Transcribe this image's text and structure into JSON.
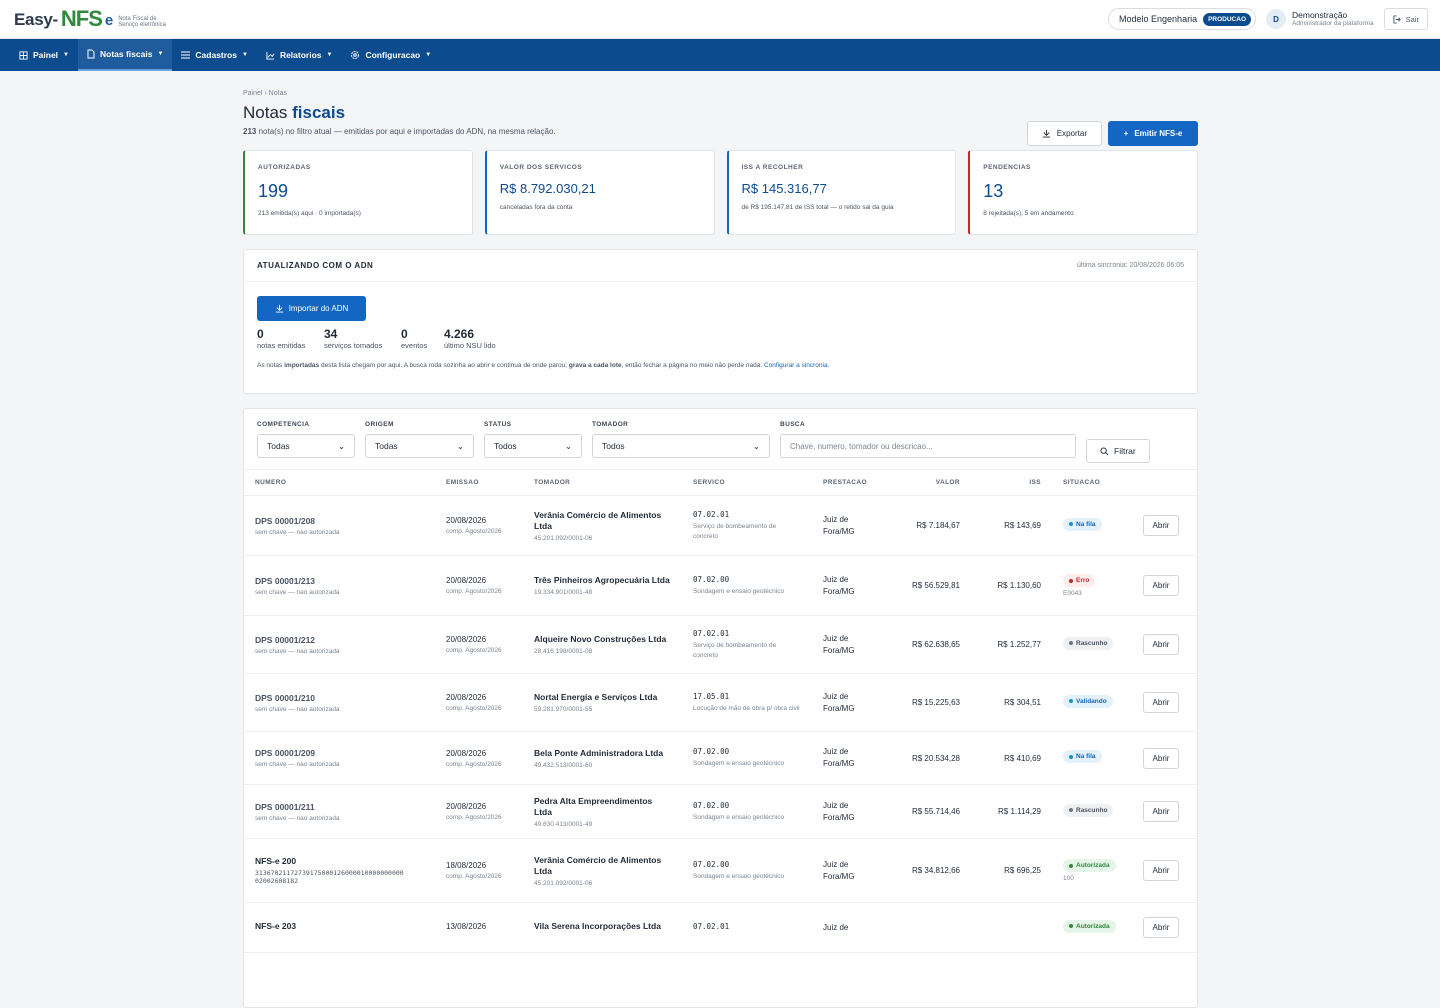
{
  "brand": {
    "name_a": "Easy-",
    "name_b": "NFS",
    "name_c": "e",
    "tagline_1": "Nota Fiscal de",
    "tagline_2": "Serviço eletrônica"
  },
  "header": {
    "company": "Modelo Engenharia",
    "env_badge": "PRODUCAO",
    "avatar": "D",
    "user_name": "Demonstração",
    "user_role": "Administrador da plataforma",
    "logout": "Sair"
  },
  "nav": [
    {
      "label": "Painel",
      "icon": "grid-icon",
      "active": false
    },
    {
      "label": "Notas fiscais",
      "icon": "document-icon",
      "active": true
    },
    {
      "label": "Cadastros",
      "icon": "list-icon",
      "active": false
    },
    {
      "label": "Relatorios",
      "icon": "chart-icon",
      "active": false
    },
    {
      "label": "Configuracao",
      "icon": "gear-icon",
      "active": false
    }
  ],
  "breadcrumb": "Painel › Notas",
  "page": {
    "title_a": "Notas ",
    "title_b": "fiscais",
    "count": "213",
    "subtitle_rest": " nota(s) no filtro atual — emitidas por aqui e importadas do ADN, na mesma relação.",
    "export": "Exportar",
    "emit": "Emitir NFS-e"
  },
  "cards": [
    {
      "label": "AUTORIZADAS",
      "value": "199",
      "desc": "213 emitida(s) aqui · 0 importada(s)",
      "color": "#2f8a3c"
    },
    {
      "label": "VALOR DOS SERVICOS",
      "value": "R$ 8.792.030,21",
      "desc": "canceladas fora da conta",
      "color": "#1366c2"
    },
    {
      "label": "ISS A RECOLHER",
      "value": "R$ 145.316,77",
      "desc": "de R$ 195.147,81 de ISS total — o retido sai da guia",
      "color": "#1366c2"
    },
    {
      "label": "PENDENCIAS",
      "value": "13",
      "desc": "8 rejeitada(s), 5 em andamento",
      "color": "#c62828"
    }
  ],
  "adn": {
    "title": "ATUALIZANDO COM O ADN",
    "sync": "última sincronia: 20/08/2026 06:05",
    "import": "Importar do ADN",
    "stats": [
      {
        "n": "0",
        "k": "notas emitidas"
      },
      {
        "n": "34",
        "k": "serviços tomados"
      },
      {
        "n": "0",
        "k": "eventos"
      },
      {
        "n": "4.266",
        "k": "último NSU lido"
      }
    ],
    "note_1": "As notas ",
    "note_b1": "importadas",
    "note_2": " desta lista chegam por aqui. A busca roda sozinha ao abrir e continua de onde parou; ",
    "note_b2": "grava a cada lote",
    "note_3": ", então fechar a página no meio não perde nada. ",
    "note_link": "Configurar a sincronia."
  },
  "filters": {
    "competencia_label": "COMPETENCIA",
    "competencia": "Todas",
    "origem_label": "ORIGEM",
    "origem": "Todas",
    "status_label": "STATUS",
    "status": "Todos",
    "tomador_label": "TOMADOR",
    "tomador": "Todos",
    "busca_label": "BUSCA",
    "busca_placeholder": "Chave, numero, tomador ou descricao...",
    "filtrar": "Filtrar"
  },
  "table": {
    "headers": [
      "NUMERO",
      "EMISSAO",
      "TOMADOR",
      "SERVICO",
      "PRESTACAO",
      "VALOR",
      "ISS",
      "SITUACAO"
    ],
    "open_label": "Abrir",
    "rows": [
      {
        "num": "DPS 00001/208",
        "sub": "sem chave — nao autorizada",
        "date": "20/08/2026",
        "comp": "comp. Agosto/2026",
        "tom": "Verânia Comércio de Alimentos Ltda",
        "cnpj": "45.201.092/0001-06",
        "code": "07.02.01",
        "svc": "Serviço de bombeamento de concreto",
        "city": "Juiz de Fora/MG",
        "valor": "R$ 7.184,67",
        "iss": "R$ 143,69",
        "status": "Na fila",
        "st": "fila",
        "stsub": ""
      },
      {
        "num": "DPS 00001/213",
        "sub": "sem chave — nao autorizada",
        "date": "20/08/2026",
        "comp": "comp. Agosto/2026",
        "tom": "Três Pinheiros Agropecuária Ltda",
        "cnpj": "19.334.901/0001-48",
        "code": "07.02.00",
        "svc": "Sondagem e ensaio geotécnico",
        "city": "Juiz de Fora/MG",
        "valor": "R$ 56.529,81",
        "iss": "R$ 1.130,60",
        "status": "Erro",
        "st": "erro",
        "stsub": "E0043"
      },
      {
        "num": "DPS 00001/212",
        "sub": "sem chave — nao autorizada",
        "date": "20/08/2026",
        "comp": "comp. Agosto/2026",
        "tom": "Alqueire Novo Construções Ltda",
        "cnpj": "28.416.198/0001-08",
        "code": "07.02.01",
        "svc": "Serviço de bombeamento de concreto",
        "city": "Juiz de Fora/MG",
        "valor": "R$ 62.638,65",
        "iss": "R$ 1.252,77",
        "status": "Rascunho",
        "st": "rasc",
        "stsub": ""
      },
      {
        "num": "DPS 00001/210",
        "sub": "sem chave — nao autorizada",
        "date": "20/08/2026",
        "comp": "comp. Agosto/2026",
        "tom": "Nortal Energia e Serviços Ltda",
        "cnpj": "59.281.970/0001-55",
        "code": "17.05.01",
        "svc": "Locução de mão de obra p/ obra civil",
        "city": "Juiz de Fora/MG",
        "valor": "R$ 15.225,63",
        "iss": "R$ 304,51",
        "status": "Validando",
        "st": "fila",
        "stsub": ""
      },
      {
        "num": "DPS 00001/209",
        "sub": "sem chave — nao autorizada",
        "date": "20/08/2026",
        "comp": "comp. Agosto/2026",
        "tom": "Bela Ponte Administradora Ltda",
        "cnpj": "49.432.513/0001-60",
        "code": "07.02.00",
        "svc": "Sondagem e ensaio geotécnico",
        "city": "Juiz de Fora/MG",
        "valor": "R$ 20.534,28",
        "iss": "R$ 410,69",
        "status": "Na fila",
        "st": "fila",
        "stsub": ""
      },
      {
        "num": "DPS 00001/211",
        "sub": "sem chave — nao autorizada",
        "date": "20/08/2026",
        "comp": "comp. Agosto/2026",
        "tom": "Pedra Alta Empreendimentos Ltda",
        "cnpj": "49.630.413/0001-49",
        "code": "07.02.00",
        "svc": "Sondagem e ensaio geotécnico",
        "city": "Juiz de Fora/MG",
        "valor": "R$ 55.714,46",
        "iss": "R$ 1.114,29",
        "status": "Rascunho",
        "st": "rasc",
        "stsub": ""
      },
      {
        "num": "NFS-e 200",
        "sub": "31367021172739175000126000010000000000 02002608182",
        "date": "18/08/2026",
        "comp": "comp. Agosto/2026",
        "tom": "Verânia Comércio de Alimentos Ltda",
        "cnpj": "45.201.092/0001-06",
        "code": "07.02.00",
        "svc": "Sondagem e ensaio geotécnico",
        "city": "Juiz de Fora/MG",
        "valor": "R$ 34.812,66",
        "iss": "R$ 696,25",
        "status": "Autorizada",
        "st": "aut",
        "stsub": "100"
      },
      {
        "num": "NFS-e 203",
        "sub": "",
        "date": "13/08/2026",
        "comp": "",
        "tom": "Vila Serena Incorporações Ltda",
        "cnpj": "",
        "code": "07.02.01",
        "svc": "",
        "city": "Juiz de",
        "valor": "",
        "iss": "",
        "status": "Autorizada",
        "st": "aut",
        "stsub": ""
      }
    ]
  },
  "colors": {
    "nav": "#0d4b8f",
    "primary": "#1366c2",
    "ok": "#2f8a3c",
    "err": "#c62828"
  }
}
